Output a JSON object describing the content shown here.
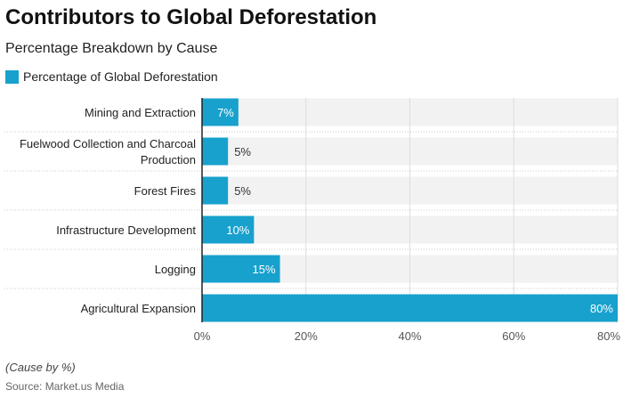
{
  "chart_data": {
    "type": "bar",
    "orientation": "horizontal",
    "title": "Contributors to Global Deforestation",
    "subtitle": "Percentage Breakdown by Cause",
    "categories": [
      "Mining and Extraction",
      "Fuelwood Collection and Charcoal Production",
      "Forest Fires",
      "Infrastructure Development",
      "Logging",
      "Agricultural Expansion"
    ],
    "series": [
      {
        "name": "Percentage of Global Deforestation",
        "values": [
          7,
          5,
          5,
          10,
          15,
          80
        ],
        "color": "#18a1cd"
      }
    ],
    "data_labels": [
      "7%",
      "5%",
      "5%",
      "10%",
      "15%",
      "80%"
    ],
    "xlim": [
      0,
      80
    ],
    "xticks": [
      "0%",
      "20%",
      "40%",
      "60%",
      "80%"
    ],
    "grid": true,
    "legend": "top-left",
    "note": "(Cause by %)",
    "source": "Source: Market.us Media"
  }
}
